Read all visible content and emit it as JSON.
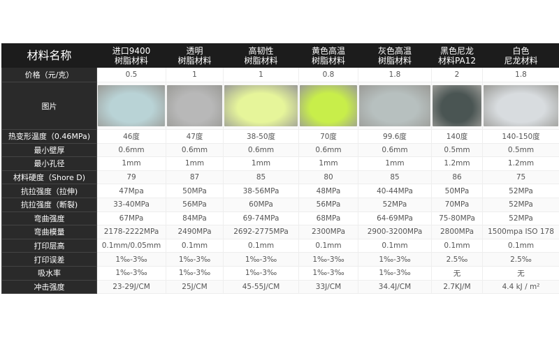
{
  "header": {
    "corner": "材料名称",
    "materials": [
      {
        "line1": "进口9400",
        "line2": "树脂材料"
      },
      {
        "line1": "透明",
        "line2": "树脂材料"
      },
      {
        "line1": "高韧性",
        "line2": "树脂材料"
      },
      {
        "line1": "黄色高温",
        "line2": "树脂材料"
      },
      {
        "line1": "灰色高温",
        "line2": "树脂材料"
      },
      {
        "line1": "黑色尼龙",
        "line2": "材料PA12"
      },
      {
        "line1": "白色",
        "line2": "尼龙材料"
      }
    ]
  },
  "price": {
    "label": "价格（元/克）",
    "values": [
      "0.5",
      "1",
      "1",
      "0.8",
      "1.8",
      "2",
      "1.8"
    ]
  },
  "images": {
    "label": "图片",
    "colors": [
      "#b9d3d6",
      "#b8b8b8",
      "#e6f59a",
      "#c8ee4a",
      "#b7c0bf",
      "#4a5553",
      "#d8dcdf"
    ]
  },
  "rows": [
    {
      "label": "热变形温度（0.46MPa)",
      "values": [
        "46度",
        "47度",
        "38-50度",
        "70度",
        "99.6度",
        "140度",
        "140-150度"
      ]
    },
    {
      "label": "最小壁厚",
      "values": [
        "0.6mm",
        "0.6mm",
        "0.6mm",
        "0.6mm",
        "0.6mm",
        "0.5mm",
        "0.5mm"
      ]
    },
    {
      "label": "最小孔径",
      "values": [
        "1mm",
        "1mm",
        "1mm",
        "1mm",
        "1mm",
        "1.2mm",
        "1.2mm"
      ]
    },
    {
      "label": "材料硬度（Shore D)",
      "values": [
        "79",
        "87",
        "85",
        "80",
        "85",
        "86",
        "75"
      ]
    },
    {
      "label": "抗拉强度（拉伸)",
      "values": [
        "47Mpa",
        "50MPa",
        "38-56MPa",
        "48MPa",
        "40-44MPa",
        "50MPa",
        "52MPa"
      ]
    },
    {
      "label": "抗拉强度（断裂)",
      "values": [
        "33-40MPa",
        "56MPa",
        "60MPa",
        "56MPa",
        "52MPa",
        "70MPa",
        "52MPa"
      ]
    },
    {
      "label": "弯曲强度",
      "values": [
        "67MPa",
        "84MPa",
        "69-74MPa",
        "68MPa",
        "64-69MPa",
        "75-80MPa",
        "52MPa"
      ]
    },
    {
      "label": "弯曲模量",
      "values": [
        "2178-2222MPa",
        "2490MPa",
        "2692-2775MPa",
        "2300MPa",
        "2900-3200MPa",
        "2800MPa",
        "1500mpa ISO 178"
      ]
    },
    {
      "label": "打印层高",
      "values": [
        "0.1mm/0.05mm",
        "0.1mm",
        "0.1mm",
        "0.1mm",
        "0.1mm",
        "0.1mm",
        "0.1mm"
      ]
    },
    {
      "label": "打印误差",
      "values": [
        "1‰-3‰",
        "1‰-3‰",
        "1‰-3‰",
        "1‰-3‰",
        "1‰-3‰",
        "2.5‰",
        "2.5‰"
      ]
    },
    {
      "label": "吸水率",
      "values": [
        "1‰-3‰",
        "1‰-3‰",
        "1‰-3‰",
        "1‰-3‰",
        "1‰-3‰",
        "无",
        "无"
      ]
    },
    {
      "label": "冲击强度",
      "values": [
        "23-29J/CM",
        "25J/CM",
        "45-55J/CM",
        "33J/CM",
        "34.4J/CM",
        "2.7KJ/M",
        "4.4 kJ / m²"
      ]
    }
  ]
}
